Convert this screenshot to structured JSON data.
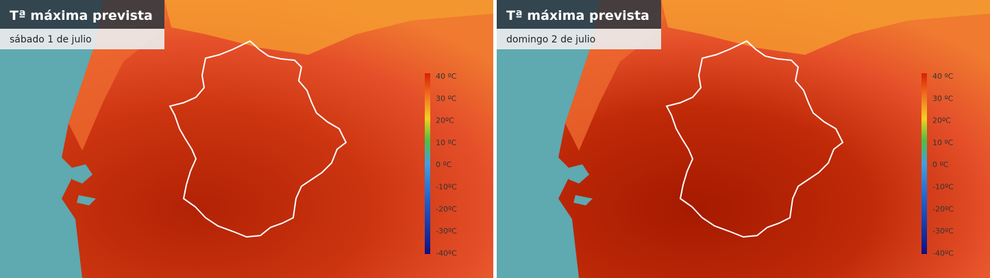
{
  "panels": [
    {
      "title": "Tª máxima prevista",
      "subtitle": "sábado 1 de julio"
    },
    {
      "title": "Tª máxima prevista",
      "subtitle": "domingo 2 de julio"
    }
  ],
  "legend": [
    "40 ºC",
    "30 ºC",
    "20ºC",
    "10 ºC",
    "0 ºC",
    "-10ºC",
    "-20ºC",
    "-30ºC",
    "-40ºC"
  ]
}
